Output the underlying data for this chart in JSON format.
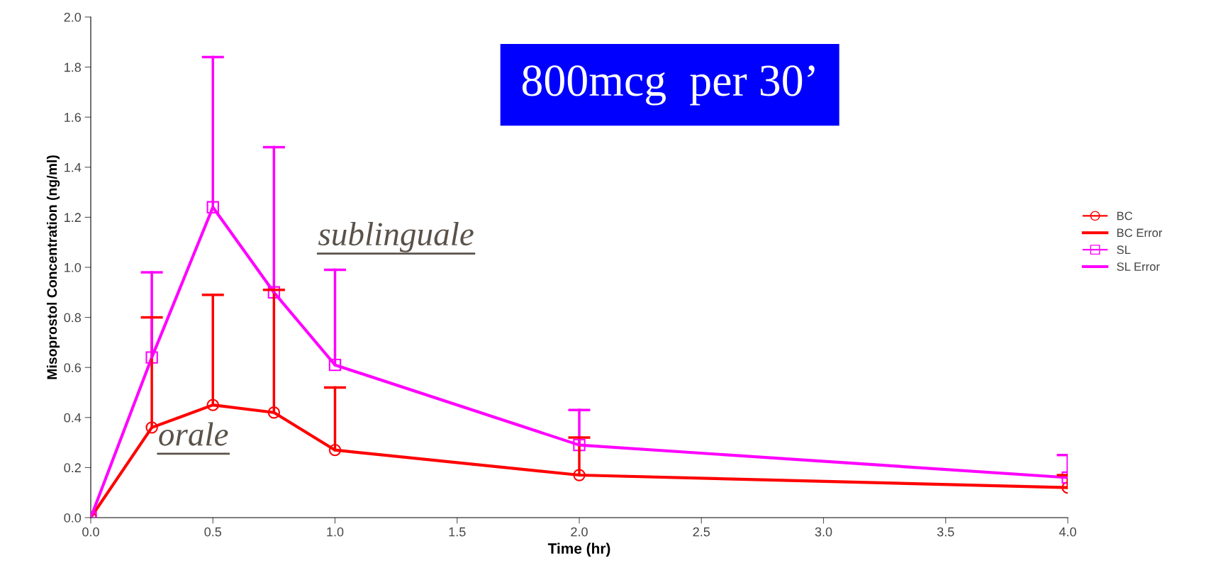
{
  "chart_data": {
    "type": "line",
    "xlabel": "Time (hr)",
    "ylabel": "Misoprostol Concentration (ng/ml)",
    "x": [
      0,
      0.25,
      0.5,
      0.75,
      1.0,
      2.0,
      4.0
    ],
    "series": [
      {
        "name": "BC",
        "color": "#ff0000",
        "marker": "circle",
        "values": [
          0,
          0.36,
          0.45,
          0.42,
          0.27,
          0.17,
          0.12
        ],
        "errors": [
          null,
          [
            0.36,
            0.8
          ],
          [
            0.45,
            0.89
          ],
          [
            0.42,
            0.91
          ],
          [
            0.27,
            0.52
          ],
          [
            0.17,
            0.32
          ],
          [
            0.12,
            0.17
          ]
        ]
      },
      {
        "name": "SL",
        "color": "#ff00ff",
        "marker": "square",
        "values": [
          0,
          0.64,
          1.24,
          0.9,
          0.61,
          0.29,
          0.16
        ],
        "errors": [
          null,
          [
            0.64,
            0.98
          ],
          [
            1.24,
            1.84
          ],
          [
            0.9,
            1.48
          ],
          [
            0.61,
            0.99
          ],
          [
            0.29,
            0.43
          ],
          [
            0.16,
            0.25
          ]
        ]
      }
    ],
    "xlim": [
      0,
      4.0
    ],
    "xticks": [
      {
        "value": 0,
        "label": "0.0"
      },
      0.5,
      {
        "value": 1,
        "label": "1.0"
      },
      1.5,
      {
        "value": 2,
        "label": "2.0"
      },
      2.5,
      {
        "value": 3,
        "label": "3.0"
      },
      3.5,
      {
        "value": 4,
        "label": "4.0"
      }
    ],
    "ylim": [
      0,
      2.0
    ],
    "yticks": [
      {
        "value": 0,
        "label": "0.0"
      },
      0.2,
      0.4,
      0.6,
      0.8,
      {
        "value": 1,
        "label": "1.0"
      },
      1.2,
      1.4,
      1.6,
      1.8,
      {
        "value": 2,
        "label": "2.0"
      }
    ],
    "annotations": [
      "800mcg  per 30’",
      "sublinguale",
      "orale",
      "BC Error",
      "SL Error"
    ],
    "grid": false,
    "legend": "right"
  }
}
